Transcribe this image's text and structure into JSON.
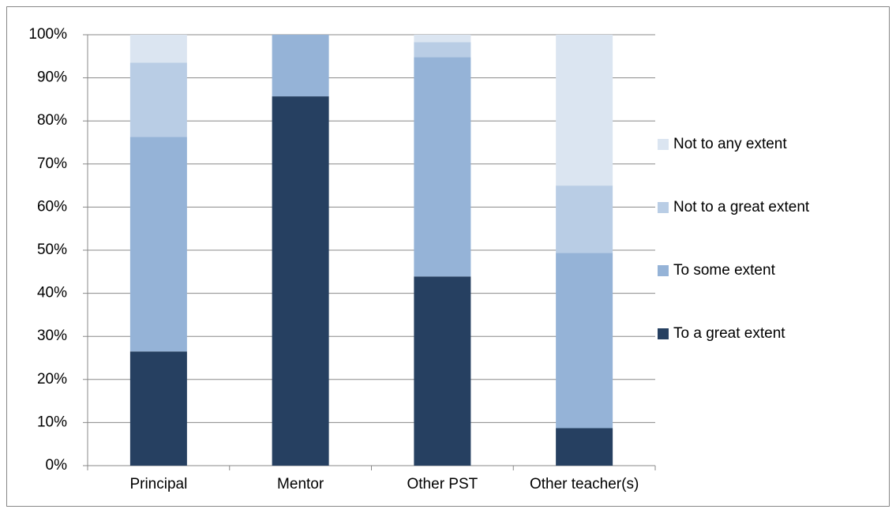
{
  "chart_data": {
    "type": "stacked_bar",
    "categories": [
      "Principal",
      "Mentor",
      "Other PST",
      "Other teacher(s)"
    ],
    "series": [
      {
        "name": "To a great extent",
        "color": "#264061",
        "values": [
          26.5,
          85.7,
          43.9,
          8.7
        ]
      },
      {
        "name": "To some extent",
        "color": "#95b3d7",
        "values": [
          49.8,
          14.3,
          50.9,
          40.7
        ]
      },
      {
        "name": "Not to a great extent",
        "color": "#b9cde5",
        "values": [
          17.2,
          0,
          3.5,
          15.6
        ]
      },
      {
        "name": "Not to any extent",
        "color": "#dbe5f1",
        "values": [
          6.5,
          0,
          1.7,
          35.0
        ]
      }
    ],
    "ylim": [
      0,
      100
    ],
    "yticks": [
      {
        "value": 0,
        "label": "0%"
      },
      {
        "value": 10,
        "label": "10%"
      },
      {
        "value": 20,
        "label": "20%"
      },
      {
        "value": 30,
        "label": "30%"
      },
      {
        "value": 40,
        "label": "40%"
      },
      {
        "value": 50,
        "label": "50%"
      },
      {
        "value": 60,
        "label": "60%"
      },
      {
        "value": 70,
        "label": "70%"
      },
      {
        "value": 80,
        "label": "80%"
      },
      {
        "value": 90,
        "label": "90%"
      },
      {
        "value": 100,
        "label": "100%"
      }
    ],
    "grid": true,
    "legend": "right"
  }
}
